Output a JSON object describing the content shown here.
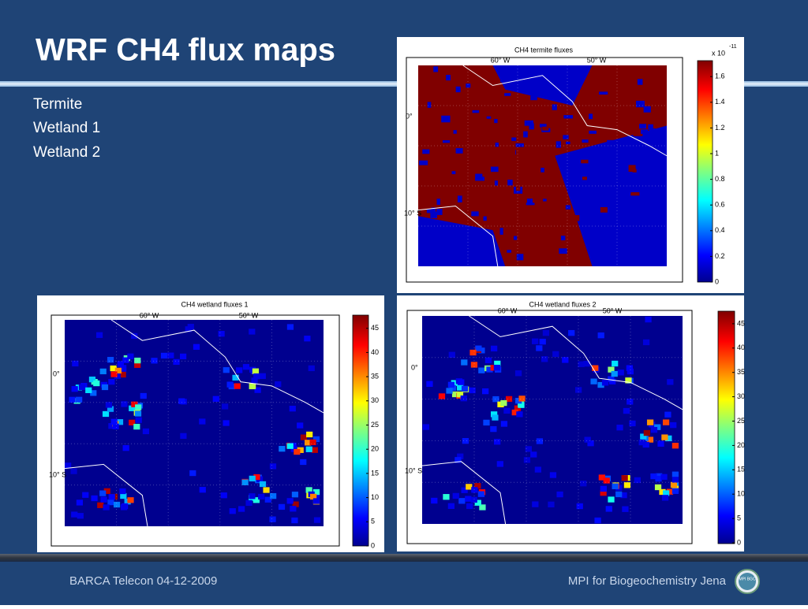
{
  "header": {
    "title": "WRF CH4 flux maps"
  },
  "bullets": [
    "Termite",
    "Wetland 1",
    "Wetland 2"
  ],
  "panels": [
    {
      "title": "CH4 termite fluxes",
      "lon_labels": [
        "60° W",
        "50° W"
      ],
      "lat_labels": [
        "0°",
        "10° S"
      ],
      "colorbar_multiplier": "x 10",
      "colorbar_exponent": "-11",
      "colorbar_ticks": [
        "0",
        "0.2",
        "0.4",
        "0.6",
        "0.8",
        "1",
        "1.2",
        "1.4",
        "1.6"
      ]
    },
    {
      "title": "CH4 wetland fluxes 1",
      "lon_labels": [
        "60° W",
        "50° W"
      ],
      "lat_labels": [
        "0°",
        "10° S"
      ],
      "colorbar_ticks": [
        "0",
        "5",
        "10",
        "15",
        "20",
        "25",
        "30",
        "35",
        "40",
        "45"
      ]
    },
    {
      "title": "CH4 wetland fluxes 2",
      "lon_labels": [
        "60° W",
        "50° W"
      ],
      "lat_labels": [
        "0°",
        "10° S"
      ],
      "colorbar_ticks": [
        "0",
        "5",
        "10",
        "15",
        "20",
        "25",
        "30",
        "35",
        "40",
        "45"
      ]
    }
  ],
  "footer": {
    "left": "BARCA Telecon 04-12-2009",
    "right": "MPI for Biogeochemistry Jena",
    "logo": "MPI BGC"
  }
}
